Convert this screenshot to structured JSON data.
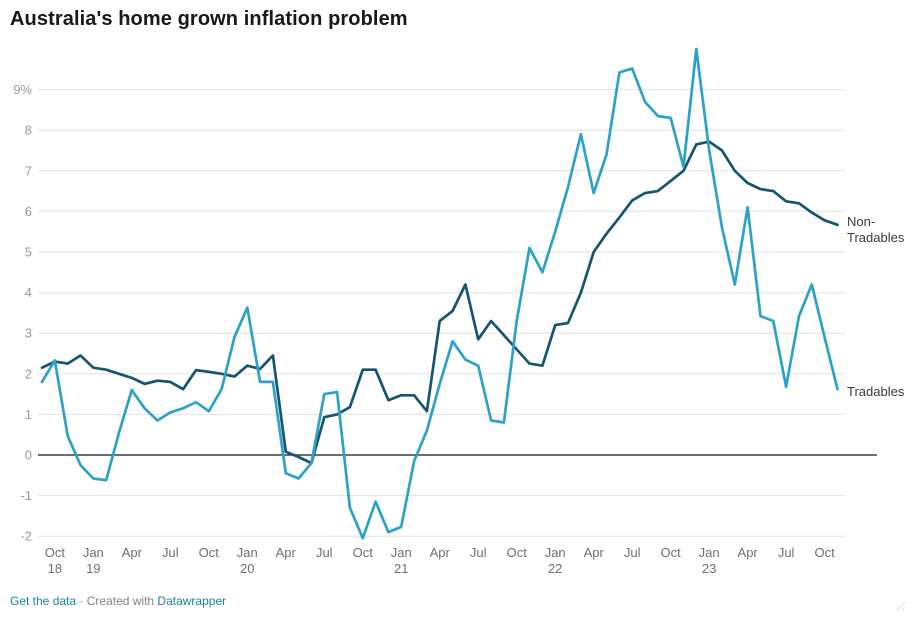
{
  "header": {
    "title": "Australia's home grown inflation problem"
  },
  "footer": {
    "get_data_label": "Get the data",
    "separator": " · ",
    "created_with": "Created with ",
    "brand": "Datawrapper"
  },
  "chart_data": {
    "type": "line",
    "title": "Australia's home grown inflation problem",
    "unit": "%",
    "frequency": "monthly",
    "x_start": "Sep 2018",
    "x_end": "Nov 2023",
    "ylim": [
      -2.3,
      10.2
    ],
    "grid": "horizontal",
    "legend_position": "end-of-line-labels",
    "grid_color": "#e2e2e2",
    "zero_line_color": "#161616",
    "y_ticks": [
      {
        "v": 9,
        "label": "9%"
      },
      {
        "v": 8,
        "label": "8"
      },
      {
        "v": 7,
        "label": "7"
      },
      {
        "v": 6,
        "label": "6"
      },
      {
        "v": 5,
        "label": "5"
      },
      {
        "v": 4,
        "label": "4"
      },
      {
        "v": 3,
        "label": "3"
      },
      {
        "v": 2,
        "label": "2"
      },
      {
        "v": 1,
        "label": "1"
      },
      {
        "v": 0,
        "label": "0"
      },
      {
        "v": -1,
        "label": "-1"
      },
      {
        "v": -2,
        "label": "-2"
      }
    ],
    "x_ticks": [
      {
        "i": 1,
        "m": "Oct",
        "y": "18"
      },
      {
        "i": 4,
        "m": "Jan",
        "y": "19"
      },
      {
        "i": 7,
        "m": "Apr"
      },
      {
        "i": 10,
        "m": "Jul"
      },
      {
        "i": 13,
        "m": "Oct"
      },
      {
        "i": 16,
        "m": "Jan",
        "y": "20"
      },
      {
        "i": 19,
        "m": "Apr"
      },
      {
        "i": 22,
        "m": "Jul"
      },
      {
        "i": 25,
        "m": "Oct"
      },
      {
        "i": 28,
        "m": "Jan",
        "y": "21"
      },
      {
        "i": 31,
        "m": "Apr"
      },
      {
        "i": 34,
        "m": "Jul"
      },
      {
        "i": 37,
        "m": "Oct"
      },
      {
        "i": 40,
        "m": "Jan",
        "y": "22"
      },
      {
        "i": 43,
        "m": "Apr"
      },
      {
        "i": 46,
        "m": "Jul"
      },
      {
        "i": 49,
        "m": "Oct"
      },
      {
        "i": 52,
        "m": "Jan",
        "y": "23"
      },
      {
        "i": 55,
        "m": "Apr"
      },
      {
        "i": 58,
        "m": "Jul"
      },
      {
        "i": 61,
        "m": "Oct"
      }
    ],
    "series": [
      {
        "name": "Non-Tradables",
        "label": "Non-\nTradables",
        "color": "#165470",
        "values": [
          2.15,
          2.3,
          2.25,
          2.45,
          2.15,
          2.1,
          2.0,
          1.9,
          1.75,
          1.83,
          1.8,
          1.62,
          2.09,
          2.05,
          2.0,
          1.93,
          2.2,
          2.12,
          2.45,
          0.08,
          -0.05,
          -0.2,
          0.93,
          1.0,
          1.18,
          2.1,
          2.1,
          1.35,
          1.47,
          1.47,
          1.08,
          3.3,
          3.55,
          4.2,
          2.85,
          3.3,
          2.95,
          2.6,
          2.25,
          2.2,
          3.2,
          3.25,
          4.0,
          5.0,
          5.45,
          5.85,
          6.27,
          6.45,
          6.5,
          6.75,
          7.0,
          7.65,
          7.72,
          7.5,
          7.0,
          6.7,
          6.55,
          6.5,
          6.25,
          6.2,
          5.97,
          5.78,
          5.67
        ]
      },
      {
        "name": "Tradables",
        "label": "Tradables",
        "color": "#2da2c8",
        "values": [
          1.8,
          2.33,
          0.47,
          -0.25,
          -0.58,
          -0.62,
          0.55,
          1.6,
          1.15,
          0.85,
          1.05,
          1.15,
          1.3,
          1.08,
          1.62,
          2.9,
          3.63,
          1.8,
          1.8,
          -0.45,
          -0.58,
          -0.2,
          1.5,
          1.55,
          -1.3,
          -2.05,
          -1.15,
          -1.9,
          -1.77,
          -0.15,
          0.6,
          1.75,
          2.8,
          2.35,
          2.2,
          0.85,
          0.8,
          3.3,
          5.1,
          4.5,
          5.5,
          6.6,
          7.9,
          6.45,
          7.4,
          9.42,
          9.52,
          8.7,
          8.35,
          8.3,
          7.1,
          10.0,
          7.5,
          5.6,
          4.2,
          6.1,
          3.42,
          3.3,
          1.68,
          3.42,
          4.2,
          2.9,
          1.62
        ]
      }
    ]
  }
}
